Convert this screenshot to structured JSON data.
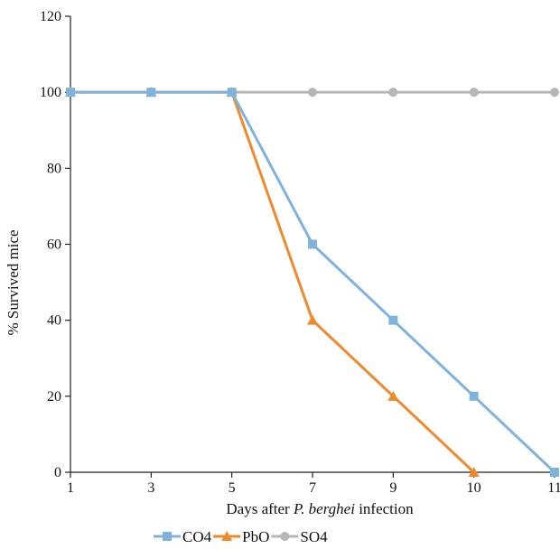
{
  "chart_data": {
    "type": "line",
    "categories": [
      "1",
      "3",
      "5",
      "7",
      "9",
      "10",
      "11"
    ],
    "series": [
      {
        "name": "CO4",
        "values": [
          100,
          100,
          100,
          60,
          40,
          20,
          0
        ],
        "color": "#7fb3de",
        "marker": "square"
      },
      {
        "name": "PbO",
        "values": [
          100,
          100,
          100,
          40,
          20,
          0,
          null
        ],
        "color": "#ee8a2c",
        "marker": "triangle"
      },
      {
        "name": "SO4",
        "values": [
          100,
          100,
          100,
          100,
          100,
          100,
          100
        ],
        "color": "#b7b7b7",
        "marker": "circle"
      }
    ],
    "xlabel_prefix": "Days after ",
    "xlabel_italic": "P. berghei",
    "xlabel_suffix": " infection",
    "ylabel": "% Survived mice",
    "ylim": [
      0,
      120
    ],
    "yticks": [
      0,
      20,
      40,
      60,
      80,
      100,
      120
    ],
    "grid": false,
    "legend_position": "bottom"
  }
}
